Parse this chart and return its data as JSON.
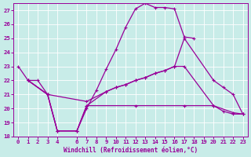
{
  "xlabel": "Windchill (Refroidissement éolien,°C)",
  "bg_color": "#c8ece8",
  "grid_color": "#ffffff",
  "line_color": "#990099",
  "ylim": [
    18,
    27.5
  ],
  "xlim": [
    -0.5,
    23.5
  ],
  "yticks": [
    18,
    19,
    20,
    21,
    22,
    23,
    24,
    25,
    26,
    27
  ],
  "xticks": [
    0,
    1,
    2,
    3,
    4,
    6,
    7,
    8,
    9,
    10,
    11,
    12,
    13,
    14,
    15,
    16,
    17,
    18,
    19,
    20,
    21,
    22,
    23
  ],
  "line1_x": [
    0,
    1,
    2,
    3,
    4,
    6,
    7,
    8,
    9,
    10,
    11,
    12,
    13,
    14,
    15,
    16,
    17,
    18
  ],
  "line1_y": [
    23.0,
    22.0,
    22.0,
    21.0,
    18.4,
    18.4,
    20.0,
    21.3,
    22.8,
    24.2,
    25.8,
    27.1,
    27.5,
    27.2,
    27.2,
    27.1,
    25.1,
    25.0
  ],
  "line2_x": [
    1,
    3,
    4,
    6,
    7,
    9,
    10,
    11,
    12,
    13,
    14,
    15,
    16,
    17,
    20,
    21,
    22,
    23
  ],
  "line2_y": [
    22.0,
    21.0,
    18.4,
    18.4,
    20.2,
    21.2,
    21.5,
    21.7,
    22.0,
    22.2,
    22.5,
    22.7,
    23.0,
    23.0,
    20.2,
    19.8,
    19.6,
    19.6
  ],
  "line3_x": [
    1,
    3,
    7,
    9,
    10,
    11,
    12,
    13,
    14,
    15,
    16,
    17,
    20,
    21,
    22,
    23
  ],
  "line3_y": [
    22.0,
    21.0,
    20.5,
    21.2,
    21.5,
    21.7,
    22.0,
    22.2,
    22.5,
    22.7,
    23.0,
    25.0,
    22.0,
    21.5,
    21.0,
    19.6
  ],
  "line4_x": [
    1,
    3,
    4,
    6,
    7,
    12,
    17,
    20,
    22,
    23
  ],
  "line4_y": [
    22.0,
    21.0,
    18.4,
    18.4,
    20.2,
    20.2,
    20.2,
    20.2,
    19.7,
    19.6
  ]
}
